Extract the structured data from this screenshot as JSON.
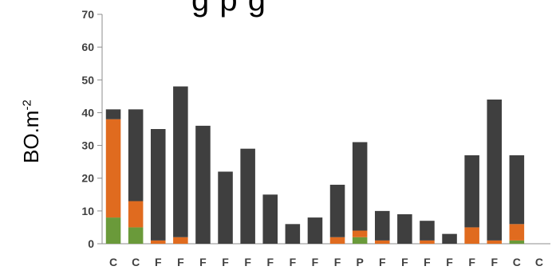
{
  "chart_data": {
    "type": "bar",
    "stacked": true,
    "title": "",
    "title_fragment": "g   p   g",
    "xlabel": "",
    "ylabel": "BO.m",
    "ylabel_sup": "-2",
    "ylim": [
      0,
      70
    ],
    "yticks": [
      0,
      10,
      20,
      30,
      40,
      50,
      60,
      70
    ],
    "grid": false,
    "categories": [
      "C",
      "C",
      "F",
      "F",
      "F",
      "F",
      "F",
      "F",
      "F",
      "F",
      "F",
      "P",
      "F",
      "F",
      "F",
      "F",
      "F",
      "F",
      "C",
      "C"
    ],
    "series": [
      {
        "color": "#6a9a3a",
        "values": [
          8,
          5,
          0,
          0,
          0,
          0,
          0,
          0,
          0,
          0,
          0,
          2,
          0,
          0,
          0,
          0,
          0,
          0,
          1,
          0
        ]
      },
      {
        "color": "#e06b1f",
        "values": [
          30,
          8,
          1,
          2,
          0,
          0,
          0,
          0,
          0,
          0,
          2,
          2,
          1,
          0,
          1,
          0,
          5,
          1,
          5,
          0
        ]
      },
      {
        "color": "#3f3f3f",
        "values": [
          3,
          28,
          34,
          46,
          36,
          22,
          29,
          15,
          6,
          8,
          16,
          27,
          9,
          9,
          6,
          3,
          22,
          43,
          21,
          0
        ]
      }
    ]
  }
}
